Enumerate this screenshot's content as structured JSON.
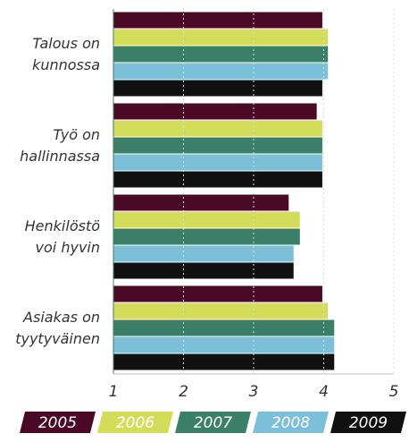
{
  "chart_data": {
    "type": "bar",
    "orientation": "horizontal",
    "categories": [
      "Talous on\nkunnossa",
      "Työ on\nhallinnassa",
      "Henkilöstö\nvoi hyvin",
      "Asiakas on\ntyytyväinen"
    ],
    "series": [
      {
        "name": "2005",
        "color": "#4a0a26",
        "values": [
          3.98,
          3.9,
          3.5,
          3.98
        ]
      },
      {
        "name": "2006",
        "color": "#d4dd5a",
        "values": [
          4.06,
          3.98,
          3.66,
          4.06
        ]
      },
      {
        "name": "2007",
        "color": "#3c7f68",
        "values": [
          4.06,
          3.98,
          3.66,
          4.15
        ]
      },
      {
        "name": "2008",
        "color": "#7bbfd9",
        "values": [
          4.06,
          3.98,
          3.57,
          4.15
        ]
      },
      {
        "name": "2009",
        "color": "#111111",
        "values": [
          3.98,
          3.98,
          3.57,
          4.15
        ]
      }
    ],
    "xlim": [
      1,
      5
    ],
    "xticks": [
      1,
      2,
      3,
      4,
      5
    ],
    "grid": true,
    "legend": "bottom"
  }
}
